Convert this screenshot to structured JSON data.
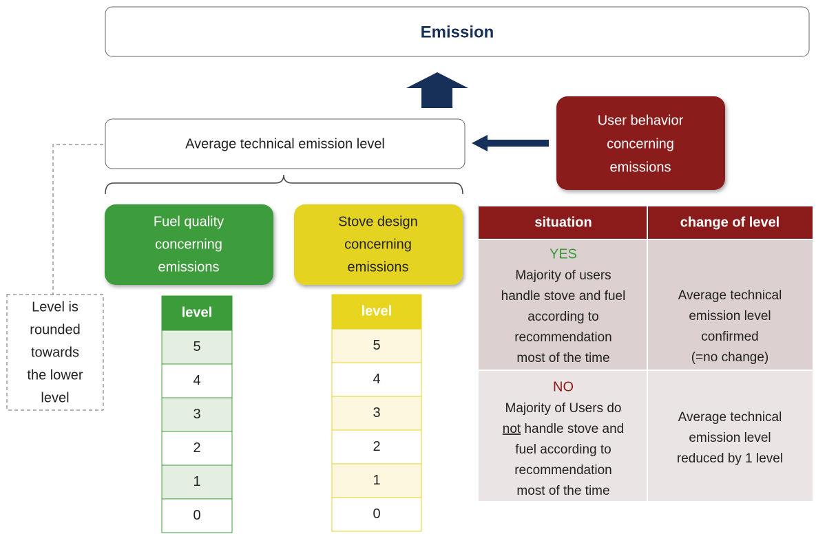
{
  "emission": "Emission",
  "average": "Average technical emission level",
  "user_behavior": [
    "User behavior",
    "concerning",
    "emissions"
  ],
  "note": [
    "Level is",
    "rounded",
    "towards",
    "the lower",
    "level"
  ],
  "fuel": {
    "lines": [
      "Fuel quality",
      "concerning",
      "emissions"
    ],
    "header": "level",
    "rows": [
      "5",
      "4",
      "3",
      "2",
      "1",
      "0"
    ]
  },
  "stove": {
    "lines": [
      "Stove design",
      "concerning",
      "emissions"
    ],
    "header": "level",
    "rows": [
      "5",
      "4",
      "3",
      "2",
      "1",
      "0"
    ]
  },
  "table": {
    "headers": [
      "situation",
      "change of level"
    ],
    "rows": [
      {
        "answer": "YES",
        "lines": [
          "Majority of users",
          "handle stove and fuel",
          "according to",
          "recommendation",
          "most of the time"
        ],
        "change": [
          "Average technical",
          "emission level",
          "confirmed",
          "(=no change)"
        ]
      },
      {
        "answer": "NO",
        "lines": [
          "Majority of Users do",
          {
            "underlined": "not",
            "rest": " handle stove and"
          },
          "fuel according to",
          "recommendation",
          "most of the time"
        ],
        "change": [
          "Average technical",
          "emission level",
          "reduced by 1 level"
        ]
      }
    ]
  }
}
